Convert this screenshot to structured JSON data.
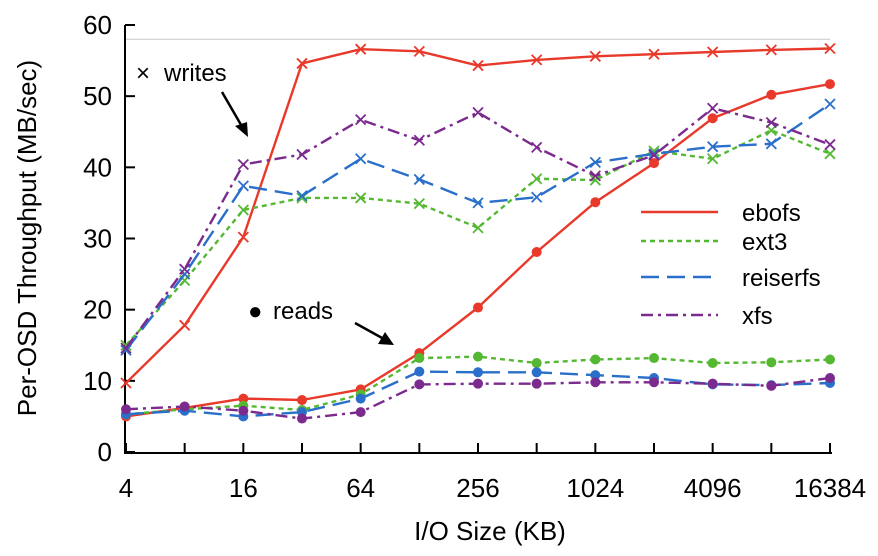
{
  "chart_data": {
    "type": "line",
    "xlabel": "I/O Size (KB)",
    "ylabel": "Per-OSD Throughput (MB/sec)",
    "x_scale": "log2",
    "x": [
      4,
      8,
      16,
      32,
      64,
      128,
      256,
      512,
      1024,
      2048,
      4096,
      8192,
      16384
    ],
    "x_tick_labels": [
      "4",
      "16",
      "64",
      "256",
      "1024",
      "4096",
      "16384"
    ],
    "xlim": [
      4,
      16384
    ],
    "ylim": [
      0,
      60
    ],
    "y_ticks": [
      "0",
      "10",
      "20",
      "30",
      "40",
      "50",
      "60"
    ],
    "reference_line": 58,
    "grid": false,
    "legend_position": "right",
    "series": [
      {
        "name": "ebofs",
        "color": "#e8392a",
        "dash": "solid",
        "writes": [
          9.7,
          17.8,
          30.2,
          54.6,
          56.6,
          56.3,
          54.3,
          55.1,
          55.6,
          55.9,
          56.2,
          56.5,
          56.7
        ],
        "reads": [
          5.0,
          6.2,
          7.5,
          7.3,
          8.8,
          13.9,
          20.3,
          28.1,
          35.1,
          40.6,
          46.9,
          50.2,
          51.7
        ]
      },
      {
        "name": "ext3",
        "color": "#55b833",
        "dash": "dotted",
        "writes": [
          15.0,
          24.1,
          34.0,
          35.7,
          35.7,
          34.9,
          31.5,
          38.4,
          38.2,
          42.3,
          41.2,
          45.2,
          41.9
        ],
        "reads": [
          5.3,
          6.0,
          6.5,
          5.9,
          8.1,
          13.2,
          13.4,
          12.5,
          13.0,
          13.2,
          12.5,
          12.6,
          13.0
        ]
      },
      {
        "name": "reiserfs",
        "color": "#2a6fc9",
        "dash": "long-dash",
        "writes": [
          14.3,
          25.0,
          37.4,
          36.0,
          41.2,
          38.3,
          35.0,
          35.8,
          40.7,
          41.9,
          42.9,
          43.3,
          48.9
        ],
        "reads": [
          5.3,
          5.8,
          5.0,
          5.6,
          7.5,
          11.3,
          11.2,
          11.2,
          10.8,
          10.4,
          9.5,
          9.4,
          9.7
        ]
      },
      {
        "name": "xfs",
        "color": "#7b2a8e",
        "dash": "dash-dot",
        "writes": [
          14.6,
          25.7,
          40.4,
          41.8,
          46.7,
          43.8,
          47.7,
          42.8,
          38.8,
          41.7,
          48.3,
          46.3,
          43.2
        ],
        "reads": [
          6.0,
          6.4,
          5.8,
          4.7,
          5.6,
          9.5,
          9.6,
          9.6,
          9.8,
          9.8,
          9.6,
          9.3,
          10.4
        ]
      }
    ],
    "annotations": [
      {
        "symbol": "×",
        "text": "writes"
      },
      {
        "symbol": "●",
        "text": "reads"
      }
    ]
  }
}
